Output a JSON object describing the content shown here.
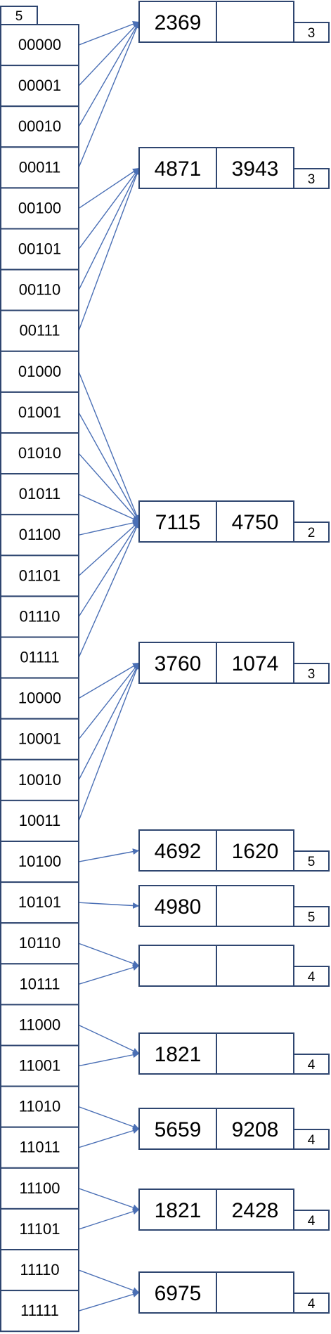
{
  "global_depth": "5",
  "directory": [
    {
      "label": "00000",
      "bucket": 0
    },
    {
      "label": "00001",
      "bucket": 0
    },
    {
      "label": "00010",
      "bucket": 0
    },
    {
      "label": "00011",
      "bucket": 0
    },
    {
      "label": "00100",
      "bucket": 1
    },
    {
      "label": "00101",
      "bucket": 1
    },
    {
      "label": "00110",
      "bucket": 1
    },
    {
      "label": "00111",
      "bucket": 1
    },
    {
      "label": "01000",
      "bucket": 2
    },
    {
      "label": "01001",
      "bucket": 2
    },
    {
      "label": "01010",
      "bucket": 2
    },
    {
      "label": "01011",
      "bucket": 2
    },
    {
      "label": "01100",
      "bucket": 2
    },
    {
      "label": "01101",
      "bucket": 2
    },
    {
      "label": "01110",
      "bucket": 2
    },
    {
      "label": "01111",
      "bucket": 2
    },
    {
      "label": "10000",
      "bucket": 3
    },
    {
      "label": "10001",
      "bucket": 3
    },
    {
      "label": "10010",
      "bucket": 3
    },
    {
      "label": "10011",
      "bucket": 3
    },
    {
      "label": "10100",
      "bucket": 4
    },
    {
      "label": "10101",
      "bucket": 5
    },
    {
      "label": "10110",
      "bucket": 6
    },
    {
      "label": "10111",
      "bucket": 6
    },
    {
      "label": "11000",
      "bucket": 7
    },
    {
      "label": "11001",
      "bucket": 7
    },
    {
      "label": "11010",
      "bucket": 8
    },
    {
      "label": "11011",
      "bucket": 8
    },
    {
      "label": "11100",
      "bucket": 9
    },
    {
      "label": "11101",
      "bucket": 9
    },
    {
      "label": "11110",
      "bucket": 10
    },
    {
      "label": "11111",
      "bucket": 10
    }
  ],
  "buckets": [
    {
      "keys": [
        "2369",
        ""
      ],
      "local_depth": "3"
    },
    {
      "keys": [
        "4871",
        "3943"
      ],
      "local_depth": "3"
    },
    {
      "keys": [
        "7115",
        "4750"
      ],
      "local_depth": "2"
    },
    {
      "keys": [
        "3760",
        "1074"
      ],
      "local_depth": "3"
    },
    {
      "keys": [
        "4692",
        "1620"
      ],
      "local_depth": "5"
    },
    {
      "keys": [
        "4980",
        ""
      ],
      "local_depth": "5"
    },
    {
      "keys": [
        "",
        ""
      ],
      "local_depth": "4"
    },
    {
      "keys": [
        "1821",
        ""
      ],
      "local_depth": "4"
    },
    {
      "keys": [
        "5659",
        "9208"
      ],
      "local_depth": "4"
    },
    {
      "keys": [
        "1821",
        "2428"
      ],
      "local_depth": "4"
    },
    {
      "keys": [
        "6975",
        ""
      ],
      "local_depth": "4"
    }
  ]
}
